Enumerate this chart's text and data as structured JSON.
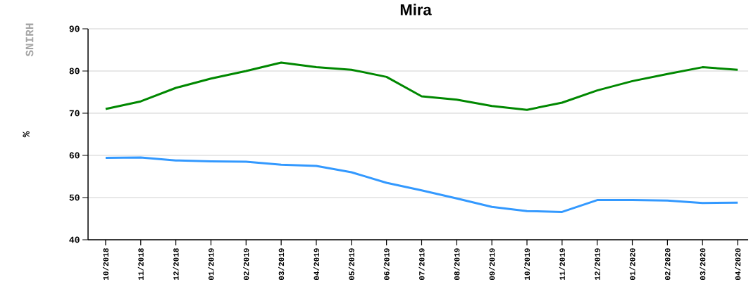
{
  "chart_data": {
    "type": "line",
    "title": "Mira",
    "ylabel": "%",
    "annotations": [
      "SNIRH"
    ],
    "categories": [
      "10/2018",
      "11/2018",
      "12/2018",
      "01/2019",
      "02/2019",
      "03/2019",
      "04/2019",
      "05/2019",
      "06/2019",
      "07/2019",
      "08/2019",
      "09/2019",
      "10/2019",
      "11/2019",
      "12/2019",
      "01/2020",
      "02/2020",
      "03/2020",
      "04/2020"
    ],
    "series": [
      {
        "color": "#008800",
        "values": [
          71.0,
          72.8,
          76.0,
          78.2,
          80.0,
          82.0,
          80.9,
          80.3,
          78.6,
          74.0,
          73.2,
          71.7,
          70.8,
          72.5,
          75.4,
          77.6,
          79.3,
          80.9,
          80.3
        ]
      },
      {
        "color": "#3399ff",
        "values": [
          59.4,
          59.5,
          58.8,
          58.6,
          58.5,
          57.8,
          57.5,
          56.0,
          53.5,
          51.7,
          49.8,
          47.8,
          46.8,
          46.6,
          49.4,
          49.4,
          49.3,
          48.7,
          48.8
        ]
      }
    ],
    "ylim": [
      40,
      90
    ],
    "yticks": [
      40,
      50,
      60,
      70,
      80,
      90
    ],
    "grid": "y",
    "marker": "none",
    "line_style": "solid"
  }
}
